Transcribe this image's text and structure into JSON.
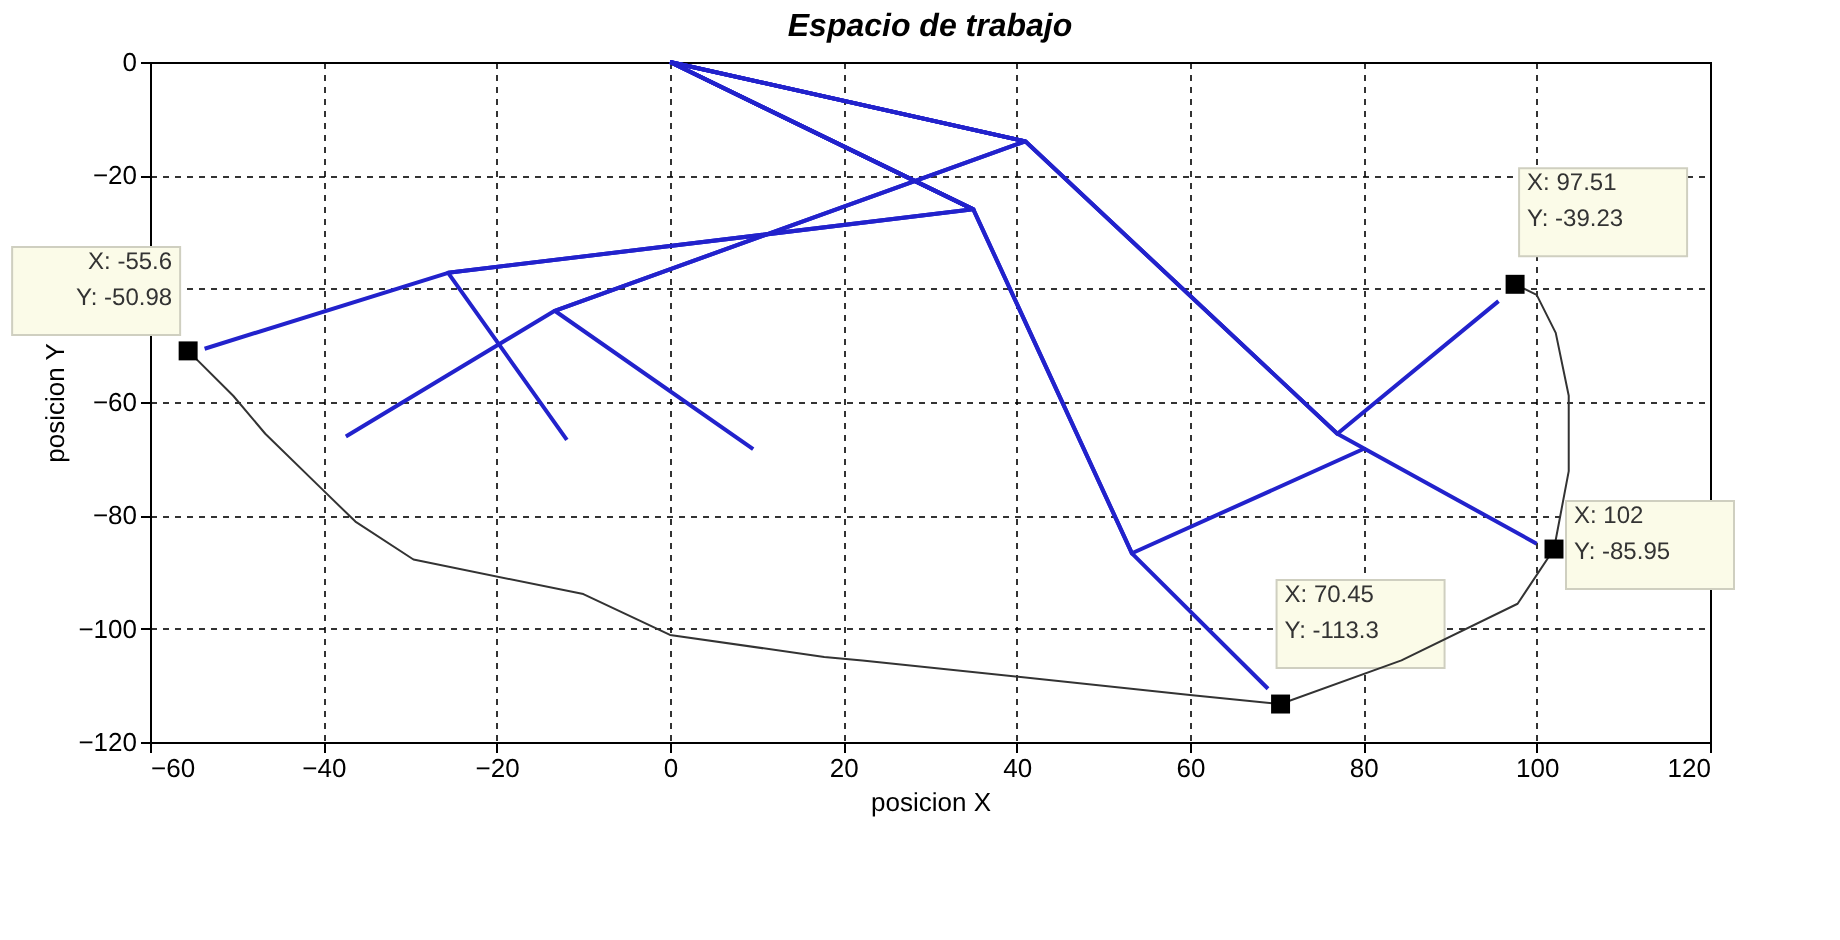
{
  "chart_data": {
    "type": "line",
    "title": "Espacio de trabajo",
    "xlabel": "posicion X",
    "ylabel": "posicion Y",
    "xlim": [
      -60,
      120
    ],
    "xticks": [
      -60,
      -40,
      -20,
      0,
      20,
      40,
      60,
      80,
      100,
      120
    ],
    "ylim": [
      -120,
      0
    ],
    "yticks": [
      -120,
      -100,
      -80,
      -60,
      {
        "value": -40,
        "label": null
      },
      -20,
      0
    ],
    "grid": true,
    "line_style": "solid",
    "series": [
      {
        "color": "#2222cc",
        "x": [
          0,
          41,
          77,
          100
        ],
        "values": [
          0,
          -14,
          -65.6,
          -85
        ]
      },
      {
        "color": "#2222cc",
        "x": [
          0,
          35,
          53.3,
          69
        ],
        "values": [
          0,
          -26,
          -86.7,
          -110.6
        ]
      },
      {
        "color": "#2222cc",
        "x": [
          0,
          41,
          -13.3,
          9.6
        ],
        "values": [
          0,
          -14,
          -43.9,
          -68.3
        ]
      },
      {
        "color": "#2222cc",
        "x": [
          0,
          35,
          -25.6,
          -53.7
        ],
        "values": [
          0,
          -26,
          -37.2,
          -50.6
        ]
      },
      {
        "color": "#2222cc",
        "x": [
          0,
          35,
          -25.6,
          -11.9
        ],
        "values": [
          0,
          -26,
          -37.2,
          -66.7
        ]
      },
      {
        "color": "#2222cc",
        "x": [
          0,
          41,
          -13.3,
          -37.4
        ],
        "values": [
          0,
          -14,
          -43.9,
          -66.1
        ]
      },
      {
        "color": "#2222cc",
        "x": [
          0,
          41,
          77,
          95.6
        ],
        "values": [
          0,
          -14,
          -65.6,
          -42.2
        ]
      },
      {
        "color": "#2222cc",
        "x": [
          0,
          35,
          53.3,
          80
        ],
        "values": [
          0,
          -26,
          -86.7,
          -68.3
        ]
      },
      {
        "color": "#333333",
        "x": [
          -55.6,
          -50.4,
          -46.7,
          -40,
          -36.3,
          -29.6,
          -10,
          0,
          17.8,
          22.2,
          60,
          70.45,
          84.4,
          97.8,
          102,
          103.7,
          103.7,
          102.2,
          100,
          97.51
        ],
        "values": [
          -50.98,
          -58.9,
          -65.6,
          -75.6,
          -81.1,
          -87.8,
          -93.9,
          -101.1,
          -105,
          -105.6,
          -111.7,
          -113.3,
          -105.6,
          -95.6,
          -85.95,
          -72.2,
          -58.9,
          -47.8,
          -41.1,
          -39.23
        ]
      },
      {
        "type": "scatter",
        "color": "#000000",
        "marker": "square",
        "x": [
          -55.6,
          97.51,
          102,
          70.45
        ],
        "values": [
          -50.98,
          -39.23,
          -85.95,
          -113.3
        ]
      }
    ],
    "annotations": [
      {
        "text": "X: -55.6\nY: -50.98",
        "x": -55.6,
        "y": -50.98
      },
      {
        "text": "X: 97.51\nY: -39.23",
        "x": 97.51,
        "y": -39.23
      },
      {
        "text": "X: 102\nY: -85.95",
        "x": 102,
        "y": -85.95
      },
      {
        "text": "X: 70.45\nY: -113.3",
        "x": 70.45,
        "y": -113.3
      }
    ]
  }
}
